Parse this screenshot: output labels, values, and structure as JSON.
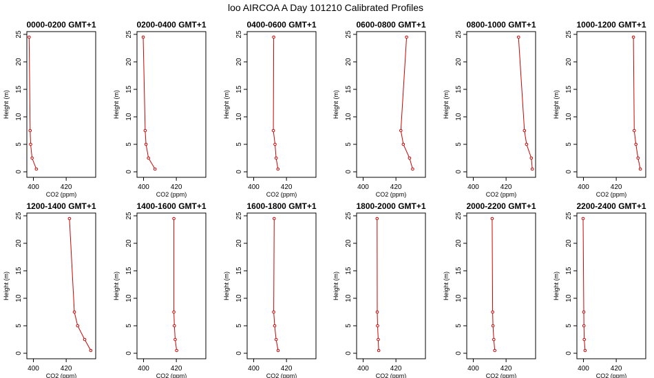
{
  "title": "loo AIRCOA A  Day 101210  Calibrated Profiles",
  "colors": {
    "series": "#cc0000",
    "axis": "#000000"
  },
  "chart_data": {
    "type": "line",
    "title": "loo AIRCOA A  Day 101210  Calibrated Profiles",
    "xlabel": "CO2 (ppm)",
    "ylabel": "Height (m)",
    "xlim": [
      396,
      438
    ],
    "ylim": [
      -1,
      25.5
    ],
    "xticks": [
      400,
      420
    ],
    "yticks": [
      0,
      5,
      10,
      15,
      20,
      25
    ],
    "heights": [
      0.5,
      2.5,
      5,
      7.5,
      24.5
    ],
    "grid": false,
    "panels": [
      {
        "title": "0000-0200 GMT+1",
        "co2": [
          401.8,
          399.2,
          398.3,
          398.0,
          397.4
        ]
      },
      {
        "title": "0200-0400 GMT+1",
        "co2": [
          407.0,
          403.0,
          401.5,
          401.0,
          399.8
        ]
      },
      {
        "title": "0400-0600 GMT+1",
        "co2": [
          414.8,
          413.7,
          413.0,
          412.0,
          412.2
        ]
      },
      {
        "title": "0600-0800 GMT+1",
        "co2": [
          430.2,
          428.3,
          424.5,
          423.0,
          426.5
        ]
      },
      {
        "title": "0800-1000 GMT+1",
        "co2": [
          436.0,
          435.4,
          432.5,
          431.2,
          427.6
        ]
      },
      {
        "title": "1000-1200 GMT+1",
        "co2": [
          434.7,
          433.3,
          432.0,
          431.0,
          430.5
        ]
      },
      {
        "title": "1200-1400 GMT+1",
        "co2": [
          435.0,
          431.3,
          427.0,
          425.0,
          422.0
        ]
      },
      {
        "title": "1400-1600 GMT+1",
        "co2": [
          420.2,
          419.3,
          418.8,
          418.5,
          418.5
        ]
      },
      {
        "title": "1600-1800 GMT+1",
        "co2": [
          414.9,
          413.7,
          412.8,
          412.2,
          412.5
        ]
      },
      {
        "title": "1800-2000 GMT+1",
        "co2": [
          409.5,
          409.2,
          408.8,
          408.6,
          408.5
        ]
      },
      {
        "title": "2000-2200 GMT+1",
        "co2": [
          413.1,
          412.5,
          412.0,
          411.8,
          411.5
        ]
      },
      {
        "title": "2200-2400 GMT+1",
        "co2": [
          401.0,
          400.5,
          400.3,
          400.2,
          399.8
        ]
      }
    ]
  }
}
